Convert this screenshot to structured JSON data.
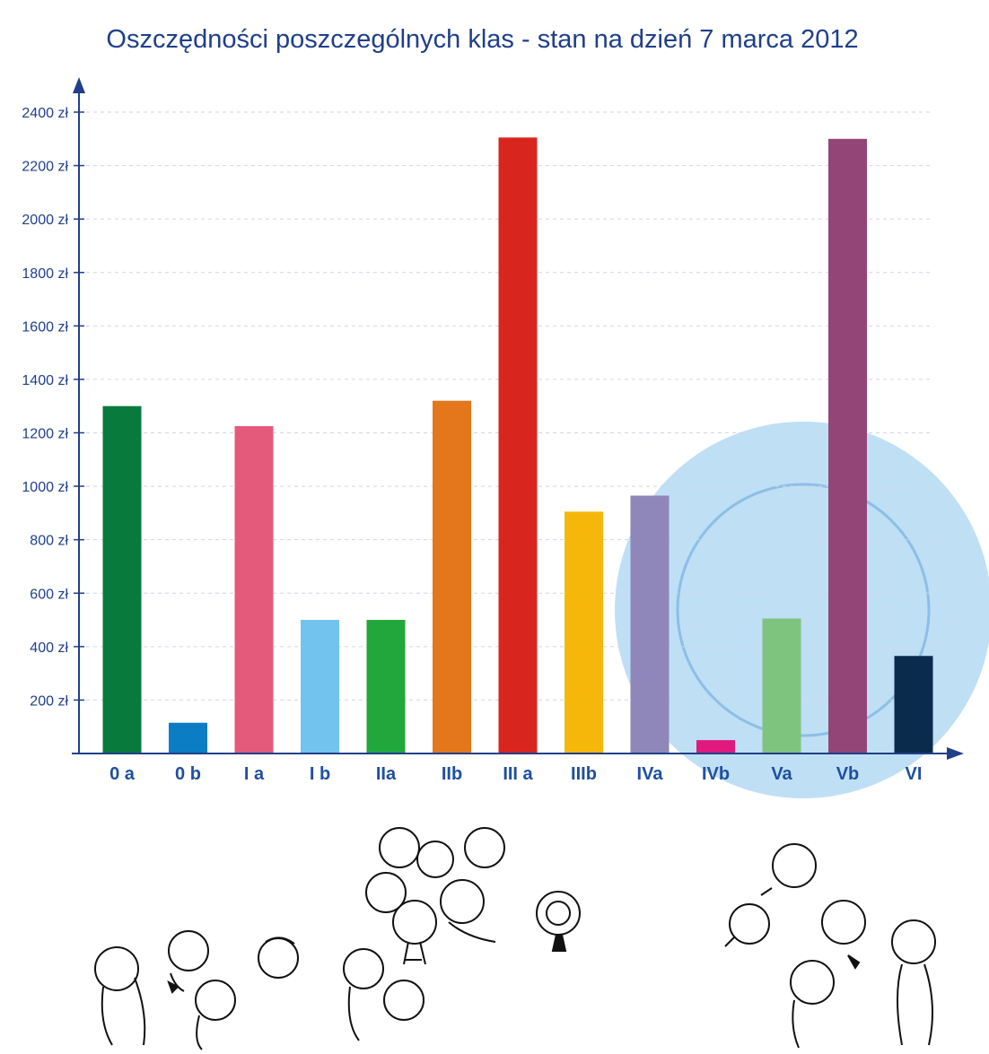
{
  "chart_data": {
    "type": "bar",
    "title": "Oszczędności poszczególnych klas - stan na dzień 7 marca 2012",
    "xlabel": "",
    "ylabel": "",
    "ylim": [
      0,
      2400
    ],
    "yticks": [
      {
        "value": 200,
        "label": "200 zł"
      },
      {
        "value": 400,
        "label": "400 zł"
      },
      {
        "value": 600,
        "label": "600 zł"
      },
      {
        "value": 800,
        "label": "800 zł"
      },
      {
        "value": 1000,
        "label": "1000 zł"
      },
      {
        "value": 1200,
        "label": "1200 zł"
      },
      {
        "value": 1400,
        "label": "1400 zł"
      },
      {
        "value": 1600,
        "label": "1600 zł"
      },
      {
        "value": 1800,
        "label": "1800 zł"
      },
      {
        "value": 2000,
        "label": "2000 zł"
      },
      {
        "value": 2200,
        "label": "2200 zł"
      },
      {
        "value": 2400,
        "label": "2400 zł"
      }
    ],
    "grid": true,
    "categories": [
      "0 a",
      "0 b",
      "I a",
      "I b",
      "IIa",
      "IIb",
      "III a",
      "IIIb",
      "IVa",
      "IVb",
      "Va",
      "Vb",
      "VI"
    ],
    "values": [
      1300,
      115,
      1225,
      500,
      500,
      1320,
      2305,
      905,
      965,
      50,
      505,
      2300,
      365
    ],
    "colors": [
      "#087a3b",
      "#0a7dc4",
      "#e45a7a",
      "#72c3ee",
      "#22a73c",
      "#e4761c",
      "#d8261f",
      "#f5b80a",
      "#8f87ba",
      "#e0197e",
      "#7ec47e",
      "#944578",
      "#0b2b4d"
    ],
    "axis_color": "#1f3f8a",
    "title_color": "#1f3f8a",
    "coin_color": "#a9d4f2"
  }
}
